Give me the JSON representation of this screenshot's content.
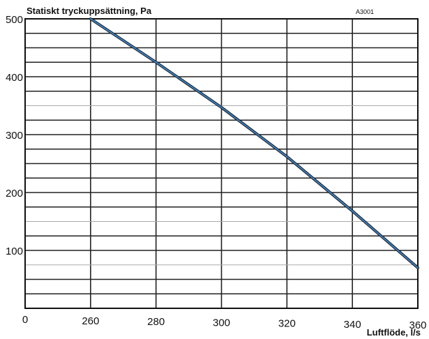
{
  "chart_data": {
    "type": "line",
    "ylabel": "Statiskt tryckuppsättning, Pa",
    "xlabel": "Luftflöde, l/s",
    "code_label": "A3001",
    "origin_label": "0",
    "x_ticks": [
      "260",
      "280",
      "300",
      "320",
      "340",
      "360"
    ],
    "y_ticks": [
      "500",
      "400",
      "300",
      "200",
      "100"
    ],
    "xlim": [
      240,
      360
    ],
    "ylim": [
      0,
      500
    ],
    "grid": true,
    "series": [
      {
        "color": "#3a7fc1",
        "x": [
          260,
          280,
          300,
          320,
          340,
          360
        ],
        "y": [
          500,
          425,
          347,
          262,
          168,
          70
        ]
      }
    ]
  }
}
